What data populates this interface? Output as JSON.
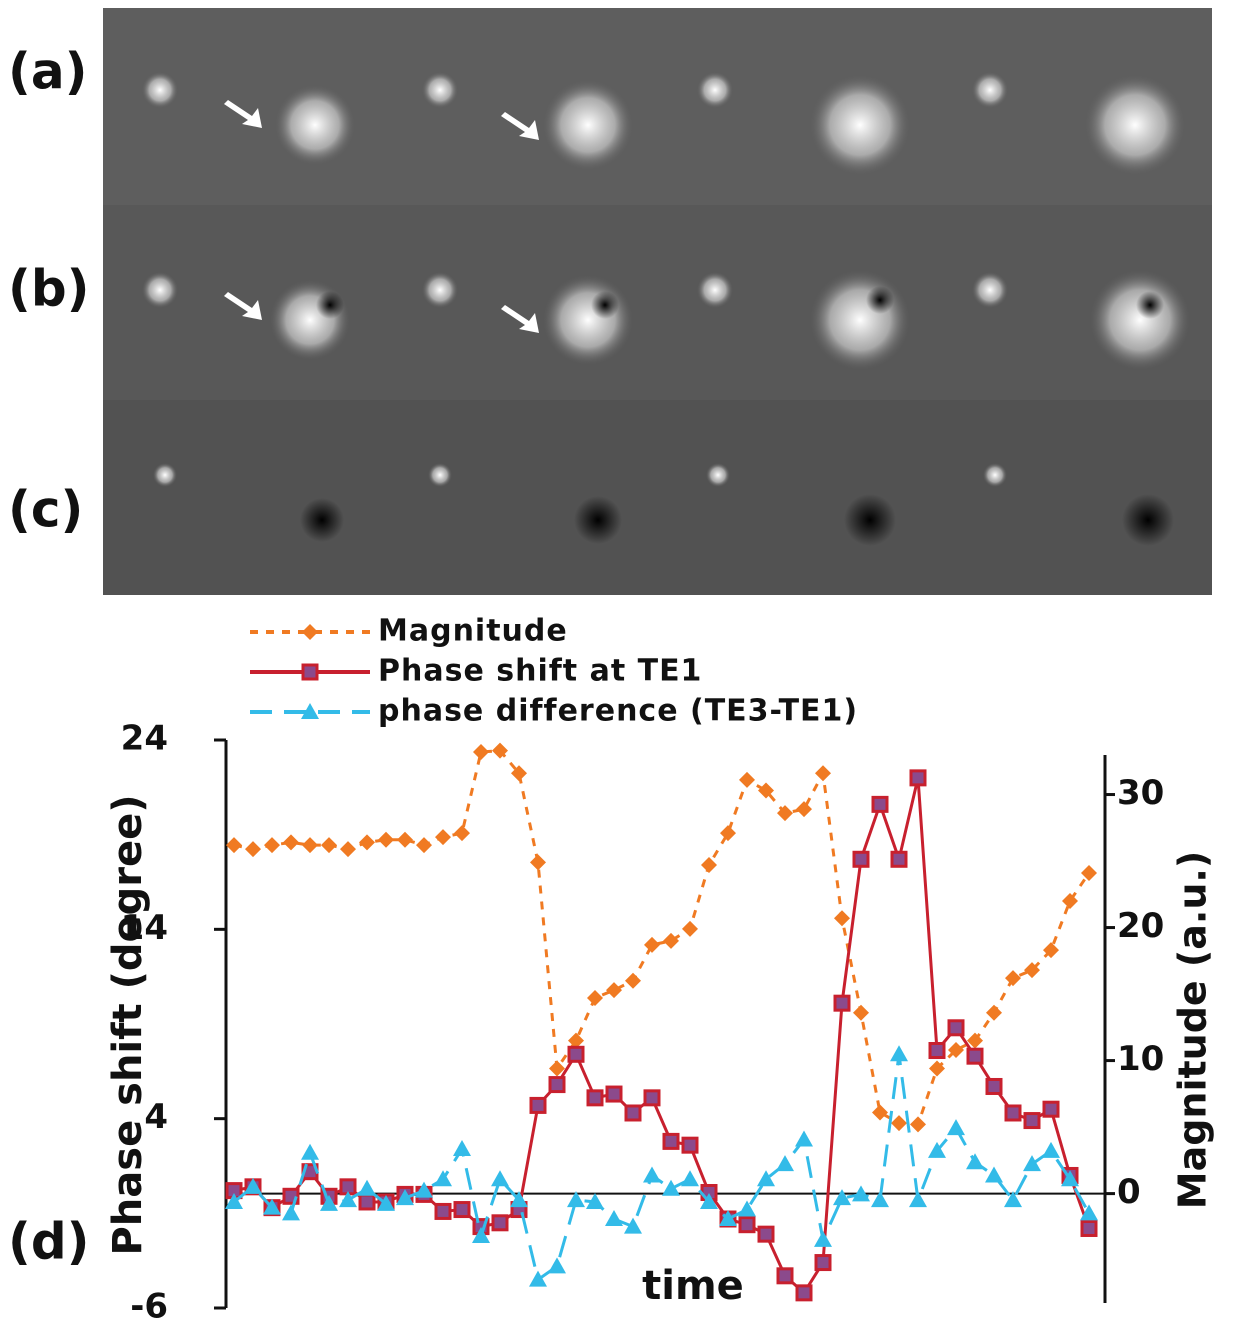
{
  "panel_labels": [
    "(a)",
    "(b)",
    "(c)",
    "(d)"
  ],
  "chart_data": {
    "type": "line",
    "xlabel": "time",
    "ylabel": "Phase shift (degree)",
    "y2label": "Magnitude (a.u.)",
    "categories": [
      null,
      null,
      null,
      null,
      null,
      null,
      null,
      null,
      null,
      null,
      null,
      null,
      null,
      null,
      null,
      null,
      null,
      null,
      null,
      null,
      null,
      null,
      null,
      null,
      null,
      null,
      null,
      null,
      null,
      null,
      null,
      null,
      null,
      null,
      null,
      null,
      null,
      null,
      null,
      null,
      null,
      null,
      null,
      null,
      null,
      null
    ],
    "ylim": [
      -6,
      24
    ],
    "yticks": [
      -6,
      4,
      14,
      24
    ],
    "y2lim": [
      -8.6,
      34.1
    ],
    "y2ticks": [
      0,
      10,
      20,
      30
    ],
    "series": [
      {
        "name": "Magnitude",
        "color": "#f07a22",
        "axis": "y2",
        "marker": "diamond",
        "dash": "8 8",
        "values": [
          26.2,
          25.9,
          26.2,
          26.4,
          26.2,
          26.2,
          25.9,
          26.4,
          26.6,
          26.6,
          26.2,
          26.8,
          27.1,
          33.2,
          33.3,
          31.6,
          24.9,
          9.4,
          11.5,
          14.7,
          15.3,
          16.0,
          18.7,
          19.0,
          19.9,
          24.7,
          27.1,
          31.1,
          30.3,
          28.6,
          28.9,
          31.6,
          20.7,
          13.6,
          6.1,
          5.3,
          5.2,
          9.4,
          10.8,
          11.5,
          13.6,
          16.2,
          16.8,
          18.3,
          22.0,
          24.1
        ]
      },
      {
        "name": "Phase shift at TE1",
        "color": "#c8202e",
        "marker": "square",
        "dash": "",
        "values": [
          0.2,
          0.4,
          -0.7,
          -0.1,
          1.2,
          -0.1,
          0.4,
          -0.4,
          -0.4,
          0.0,
          0.0,
          -0.9,
          -0.8,
          -1.7,
          -1.5,
          -0.8,
          4.7,
          5.8,
          7.4,
          5.1,
          5.3,
          4.3,
          5.1,
          2.8,
          2.6,
          0.1,
          -1.3,
          -1.6,
          -2.1,
          -4.3,
          -5.2,
          -3.6,
          10.1,
          17.7,
          20.6,
          17.7,
          22.0,
          7.6,
          8.8,
          7.3,
          5.7,
          4.3,
          3.9,
          4.5,
          1.0,
          -1.8
        ]
      },
      {
        "name": "phase difference (TE3-TE1)",
        "color": "#33bbe8",
        "marker": "triangle",
        "dash": "22 12",
        "values": [
          -0.4,
          0.4,
          -0.7,
          -1.0,
          2.2,
          -0.5,
          -0.3,
          0.3,
          -0.5,
          -0.2,
          0.2,
          0.8,
          2.4,
          -2.2,
          0.8,
          -0.3,
          -4.5,
          -3.8,
          -0.3,
          -0.4,
          -1.3,
          -1.7,
          1.0,
          0.3,
          0.8,
          -0.4,
          -1.3,
          -0.8,
          0.8,
          1.6,
          2.9,
          -2.4,
          -0.2,
          0.0,
          -0.3,
          7.4,
          -0.3,
          2.3,
          3.5,
          1.7,
          1.0,
          -0.3,
          1.6,
          2.3,
          0.8,
          -1.0
        ]
      }
    ]
  }
}
